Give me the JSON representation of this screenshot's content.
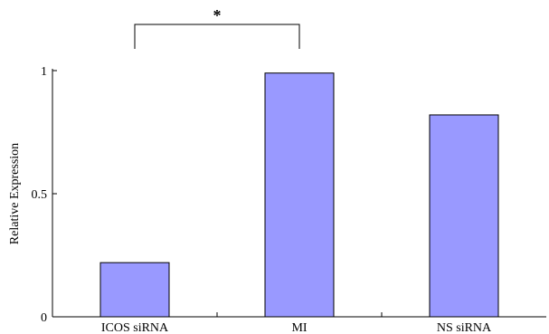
{
  "chart_data": {
    "type": "bar",
    "title": "",
    "xlabel": "",
    "ylabel": "Relative Expression",
    "categories": [
      "ICOS siRNA",
      "MI",
      "NS siRNA"
    ],
    "values": [
      0.22,
      0.99,
      0.82
    ],
    "ylim": [
      0,
      1
    ],
    "yticks": [
      0,
      0.5,
      1
    ],
    "ytick_labels": [
      "0",
      "0.5",
      "1"
    ],
    "grid": false,
    "legend": "none",
    "bar_color": "#9999ff",
    "bar_edge_color": "#000000",
    "annotations": [
      {
        "type": "significance-bracket",
        "label": "*",
        "from_category": "ICOS siRNA",
        "to_category": "MI"
      }
    ]
  }
}
